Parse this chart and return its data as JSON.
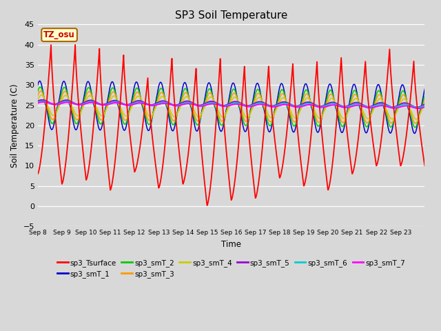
{
  "title": "SP3 Soil Temperature",
  "ylabel": "Soil Temperature (C)",
  "xlabel": "Time",
  "tz_label": "TZ_osu",
  "ylim": [
    -5,
    45
  ],
  "yticks": [
    -5,
    0,
    5,
    10,
    15,
    20,
    25,
    30,
    35,
    40,
    45
  ],
  "num_days": 16,
  "bg_color": "#d8d8d8",
  "plot_bg_color": "#d8d8d8",
  "series": [
    {
      "name": "sp3_Tsurface",
      "color": "#ff0000",
      "lw": 1.3,
      "zorder": 3
    },
    {
      "name": "sp3_smT_1",
      "color": "#0000cc",
      "lw": 1.1,
      "zorder": 2
    },
    {
      "name": "sp3_smT_2",
      "color": "#00cc00",
      "lw": 1.1,
      "zorder": 2
    },
    {
      "name": "sp3_smT_3",
      "color": "#ff9900",
      "lw": 1.1,
      "zorder": 2
    },
    {
      "name": "sp3_smT_4",
      "color": "#cccc00",
      "lw": 1.1,
      "zorder": 2
    },
    {
      "name": "sp3_smT_5",
      "color": "#9900cc",
      "lw": 1.5,
      "zorder": 2
    },
    {
      "name": "sp3_smT_6",
      "color": "#00cccc",
      "lw": 1.5,
      "zorder": 2
    },
    {
      "name": "sp3_smT_7",
      "color": "#ff00ff",
      "lw": 1.5,
      "zorder": 2
    }
  ],
  "x_tick_labels": [
    "Sep 8",
    "Sep 9",
    "Sep 10",
    "Sep 11",
    "Sep 12",
    "Sep 13",
    "Sep 14",
    "Sep 15",
    "Sep 16",
    "Sep 17",
    "Sep 18",
    "Sep 19",
    "Sep 20",
    "Sep 21",
    "Sep 22",
    "Sep 23"
  ],
  "surface_peaks": [
    40,
    40,
    39,
    37.5,
    32,
    37,
    34.5,
    37,
    35,
    35,
    35.5,
    36,
    37,
    36,
    39,
    36
  ],
  "surface_nights": [
    8,
    5.5,
    6.5,
    4,
    8.5,
    4.5,
    5.5,
    0.2,
    1.5,
    2,
    7,
    5,
    4,
    8,
    10,
    10
  ],
  "surface_night2": [
    11,
    8,
    10,
    9,
    11,
    10,
    10,
    10,
    10,
    10,
    10,
    10,
    10,
    10,
    10,
    10
  ]
}
